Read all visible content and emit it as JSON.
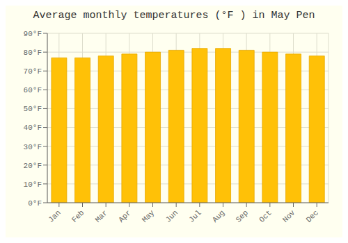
{
  "chart_data": {
    "type": "bar",
    "title": "Average monthly temperatures (°F ) in May Pen",
    "categories": [
      "Jan",
      "Feb",
      "Mar",
      "Apr",
      "May",
      "Jun",
      "Jul",
      "Aug",
      "Sep",
      "Oct",
      "Nov",
      "Dec"
    ],
    "values": [
      77,
      77,
      78,
      79,
      80,
      81,
      82,
      82,
      81,
      80,
      79,
      78
    ],
    "color": "#FFC107",
    "ylim": [
      0,
      90
    ],
    "yticks": [
      {
        "value": 0,
        "label": "0°F"
      },
      {
        "value": 10,
        "label": "10°F"
      },
      {
        "value": 20,
        "label": "20°F"
      },
      {
        "value": 30,
        "label": "30°F"
      },
      {
        "value": 40,
        "label": "40°F"
      },
      {
        "value": 50,
        "label": "50°F"
      },
      {
        "value": 60,
        "label": "60°F"
      },
      {
        "value": 70,
        "label": "70°F"
      },
      {
        "value": 80,
        "label": "80°F"
      },
      {
        "value": 90,
        "label": "90°F"
      }
    ],
    "grid": true
  }
}
